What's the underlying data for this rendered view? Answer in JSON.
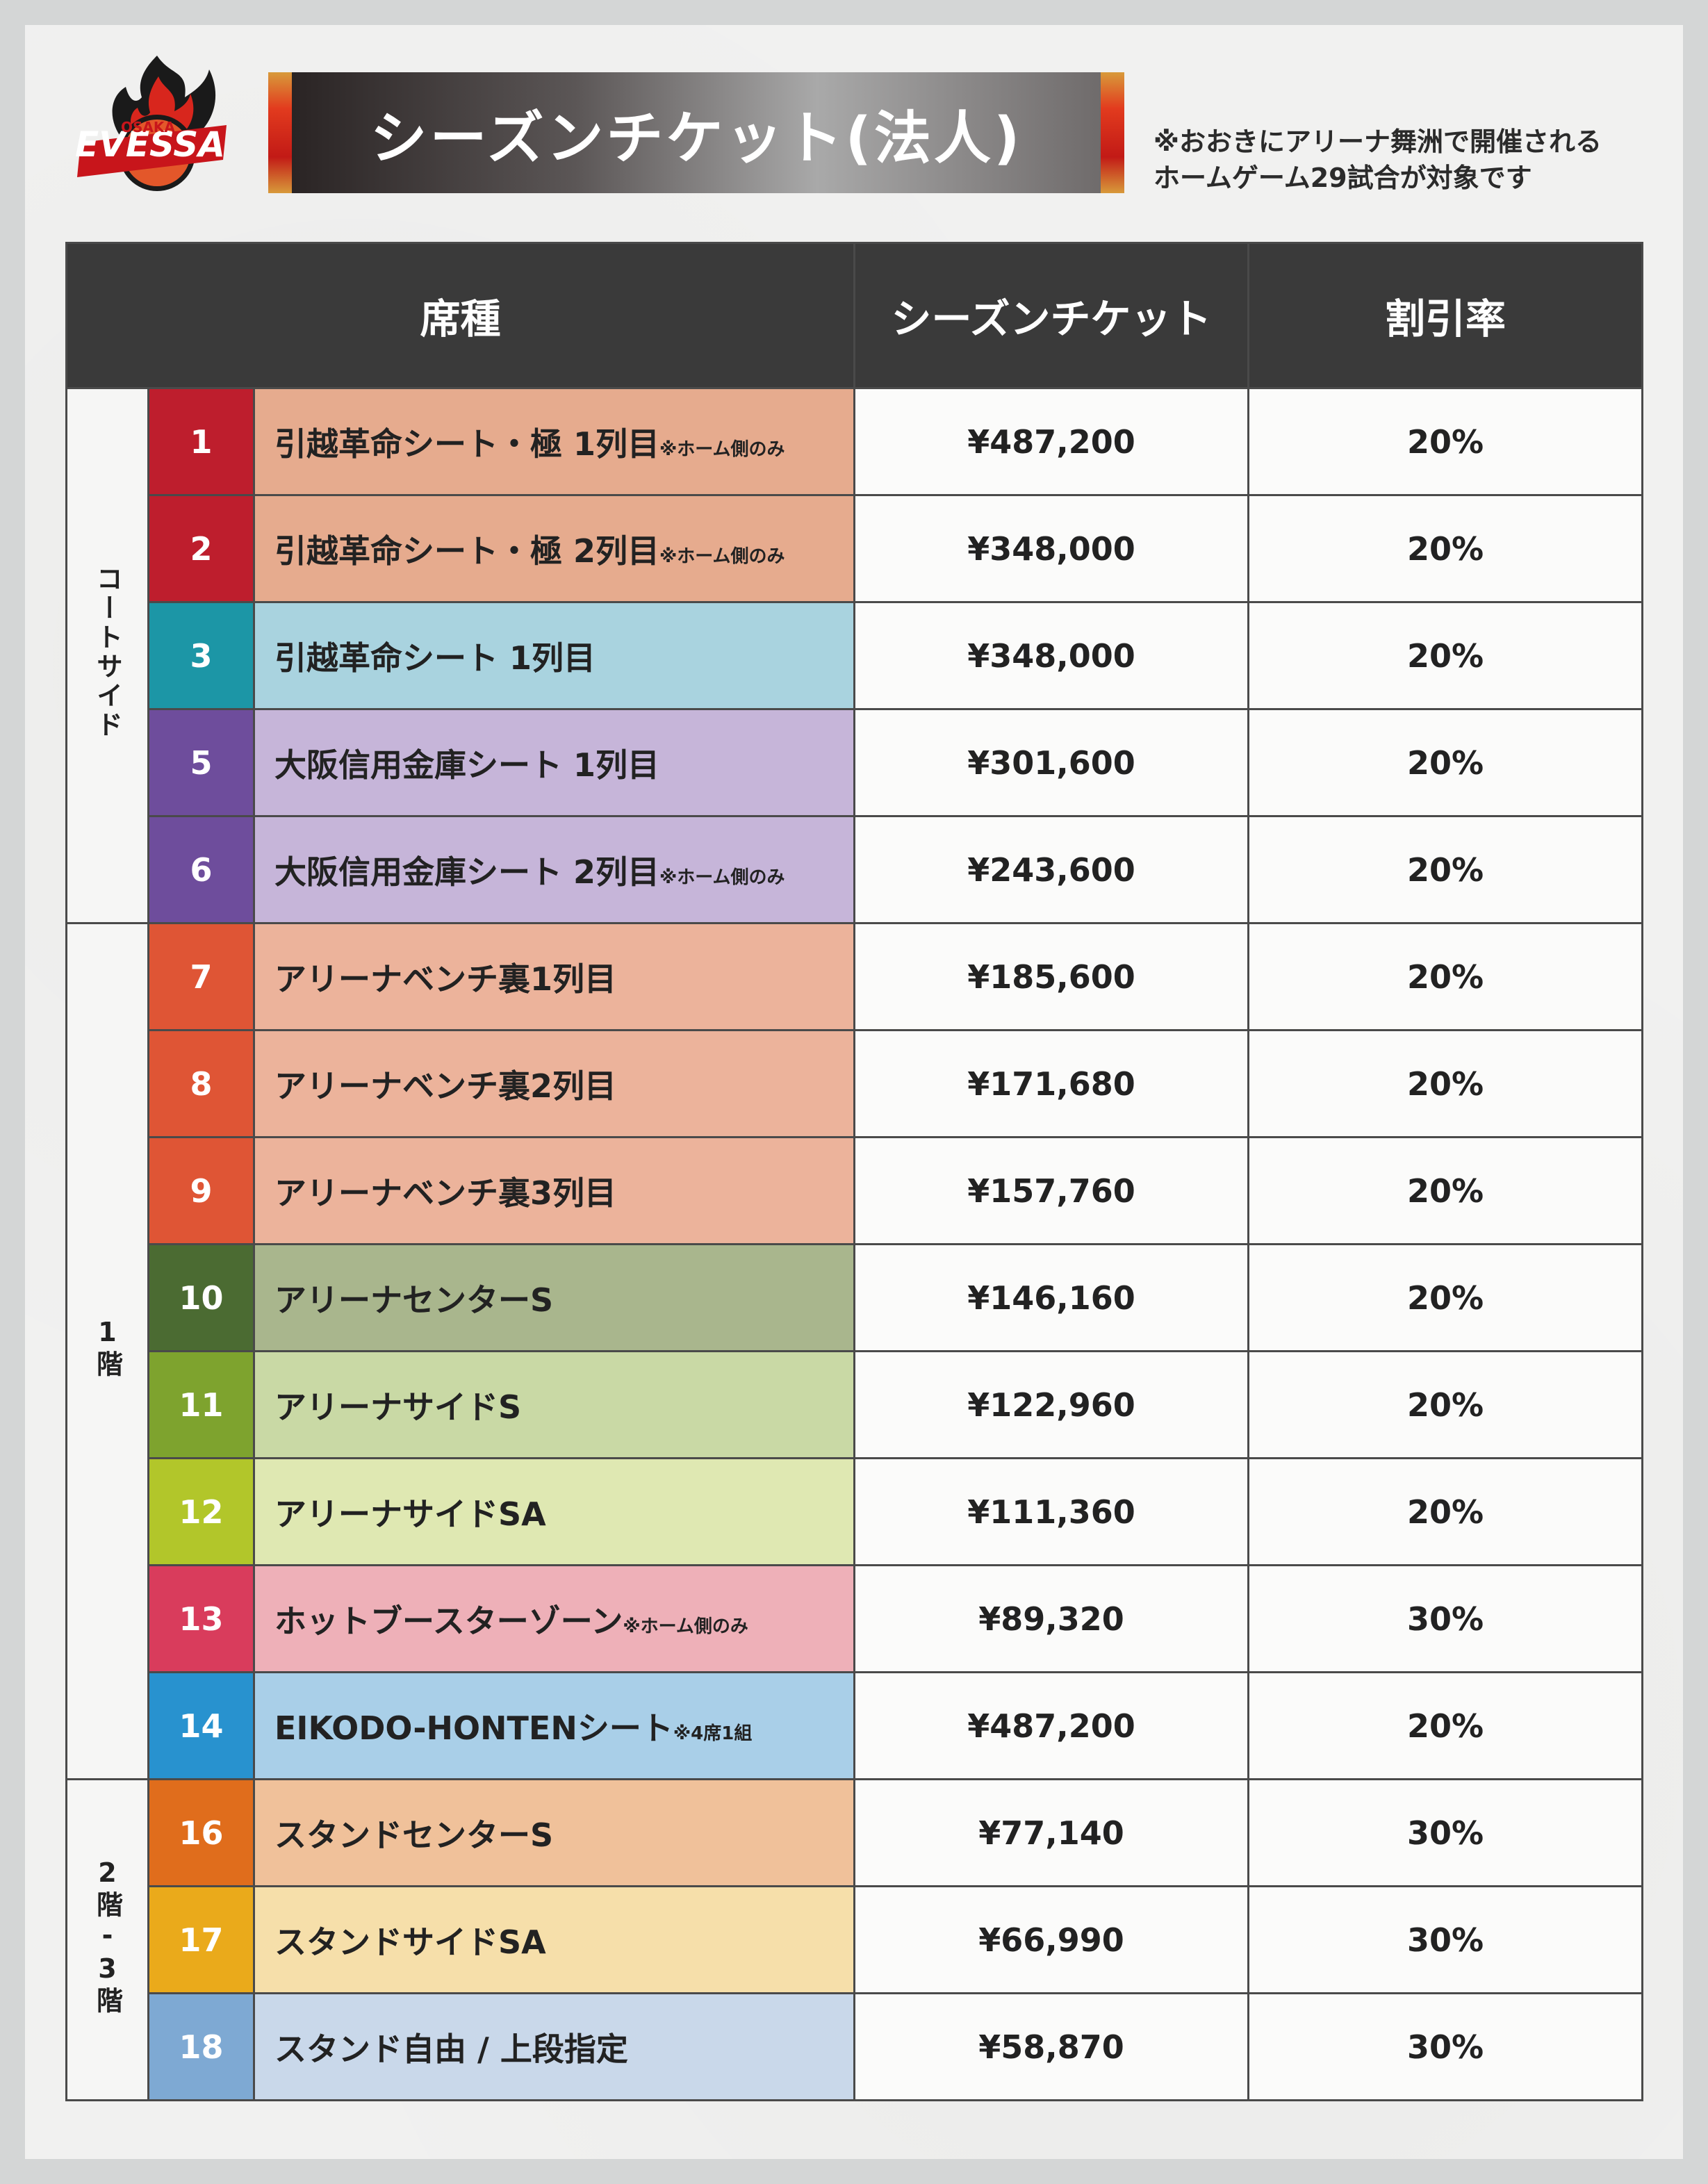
{
  "logo": {
    "team_name": "EVESSA",
    "city": "OSAKA"
  },
  "title": "シーズンチケット(法人)",
  "note_line1": "※おおきにアリーナ舞洲で開催される",
  "note_line2": "ホームゲーム29試合が対象です",
  "headers": {
    "seat": "席種",
    "season": "シーズンチケット",
    "discount": "割引率"
  },
  "groups": {
    "court": "コートサイド",
    "floor1": "1階",
    "floor23": "2階-3階"
  },
  "rows": [
    {
      "num": "1",
      "name": "引越革命シート・極 1列目",
      "suffix": "※ホーム側のみ",
      "price": "¥487,200",
      "rate": "20%",
      "num_color": "#be1e2d",
      "bg_color": "#e6ab8e"
    },
    {
      "num": "2",
      "name": "引越革命シート・極 2列目",
      "suffix": "※ホーム側のみ",
      "price": "¥348,000",
      "rate": "20%",
      "num_color": "#be1e2d",
      "bg_color": "#e6ab8e"
    },
    {
      "num": "3",
      "name": "引越革命シート 1列目",
      "suffix": "",
      "price": "¥348,000",
      "rate": "20%",
      "num_color": "#1c96a6",
      "bg_color": "#a9d3df"
    },
    {
      "num": "5",
      "name": "大阪信用金庫シート 1列目",
      "suffix": "",
      "price": "¥301,600",
      "rate": "20%",
      "num_color": "#6e4d9c",
      "bg_color": "#c6b5d9"
    },
    {
      "num": "6",
      "name": "大阪信用金庫シート 2列目",
      "suffix": "※ホーム側のみ",
      "price": "¥243,600",
      "rate": "20%",
      "num_color": "#6e4d9c",
      "bg_color": "#c6b5d9"
    },
    {
      "num": "7",
      "name": "アリーナベンチ裏1列目",
      "suffix": "",
      "price": "¥185,600",
      "rate": "20%",
      "num_color": "#df5535",
      "bg_color": "#ecb39b"
    },
    {
      "num": "8",
      "name": "アリーナベンチ裏2列目",
      "suffix": "",
      "price": "¥171,680",
      "rate": "20%",
      "num_color": "#df5535",
      "bg_color": "#ecb39b"
    },
    {
      "num": "9",
      "name": "アリーナベンチ裏3列目",
      "suffix": "",
      "price": "¥157,760",
      "rate": "20%",
      "num_color": "#df5535",
      "bg_color": "#ecb39b"
    },
    {
      "num": "10",
      "name": "アリーナセンターS",
      "suffix": "",
      "price": "¥146,160",
      "rate": "20%",
      "num_color": "#4b6b32",
      "bg_color": "#a9b68d"
    },
    {
      "num": "11",
      "name": "アリーナサイドS",
      "suffix": "",
      "price": "¥122,960",
      "rate": "20%",
      "num_color": "#7ea32e",
      "bg_color": "#c9d9a5"
    },
    {
      "num": "12",
      "name": "アリーナサイドSA",
      "suffix": "",
      "price": "¥111,360",
      "rate": "20%",
      "num_color": "#b2c62a",
      "bg_color": "#dfe8b2"
    },
    {
      "num": "13",
      "name": "ホットブースターゾーン",
      "suffix": "※ホーム側のみ",
      "price": "¥89,320",
      "rate": "30%",
      "num_color": "#d93c5c",
      "bg_color": "#eeb0b8"
    },
    {
      "num": "14",
      "name": "EIKODO-HONTENシート",
      "suffix": "※4席1組",
      "price": "¥487,200",
      "rate": "20%",
      "num_color": "#2892cf",
      "bg_color": "#a9cfe8"
    },
    {
      "num": "16",
      "name": "スタンドセンターS",
      "suffix": "",
      "price": "¥77,140",
      "rate": "30%",
      "num_color": "#e06d1c",
      "bg_color": "#f0c19a"
    },
    {
      "num": "17",
      "name": "スタンドサイドSA",
      "suffix": "",
      "price": "¥66,990",
      "rate": "30%",
      "num_color": "#eaaa1b",
      "bg_color": "#f6dfaa"
    },
    {
      "num": "18",
      "name": "スタンド自由 / 上段指定",
      "suffix": "",
      "price": "¥58,870",
      "rate": "30%",
      "num_color": "#7ea9d3",
      "bg_color": "#c9d8ea"
    }
  ]
}
